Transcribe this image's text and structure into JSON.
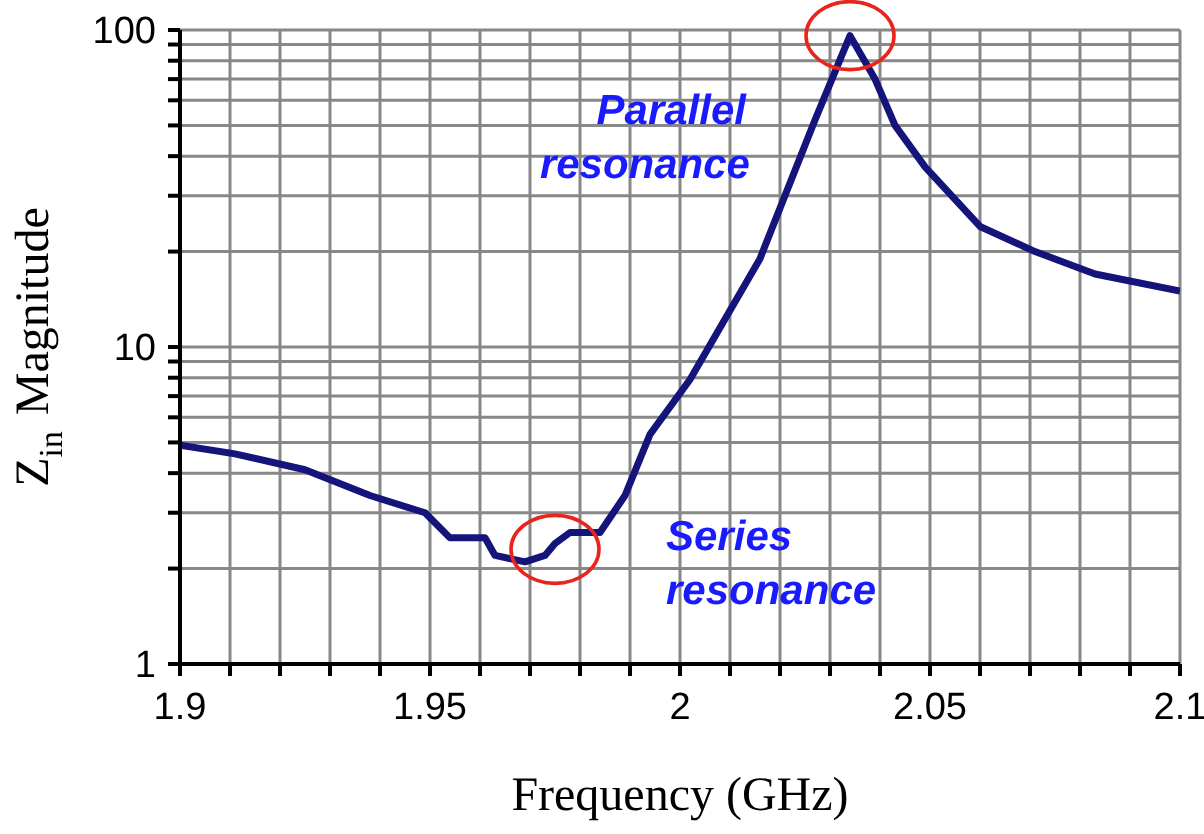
{
  "chart_data": {
    "type": "line",
    "xlabel": "Frequency (GHz)",
    "ylabel": "Z$_{in}$ Magnitude",
    "x": [
      1.9,
      1.911,
      1.925,
      1.938,
      1.949,
      1.954,
      1.961,
      1.963,
      1.969,
      1.973,
      1.975,
      1.978,
      1.984,
      1.989,
      1.994,
      2.002,
      2.016,
      2.027,
      2.034,
      2.039,
      2.043,
      2.049,
      2.06,
      2.071,
      2.083,
      2.1
    ],
    "series": [
      {
        "color": "#14147a",
        "values": [
          4.9,
          4.6,
          4.1,
          3.4,
          3.0,
          2.5,
          2.5,
          2.2,
          2.1,
          2.2,
          2.4,
          2.6,
          2.6,
          3.4,
          5.3,
          7.9,
          19,
          52,
          96,
          70,
          50,
          37,
          24,
          20,
          17,
          15
        ]
      }
    ],
    "xlim": [
      1.9,
      2.1
    ],
    "xticks": [
      1.9,
      {
        "value": 1.91,
        "label": null
      },
      {
        "value": 1.92,
        "label": null
      },
      {
        "value": 1.93,
        "label": null
      },
      {
        "value": 1.94,
        "label": null
      },
      1.95,
      {
        "value": 1.96,
        "label": null
      },
      {
        "value": 1.97,
        "label": null
      },
      {
        "value": 1.98,
        "label": null
      },
      {
        "value": 1.99,
        "label": null
      },
      2,
      {
        "value": 2.01,
        "label": null
      },
      {
        "value": 2.02,
        "label": null
      },
      {
        "value": 2.03,
        "label": null
      },
      {
        "value": 2.04,
        "label": null
      },
      2.05,
      {
        "value": 2.06,
        "label": null
      },
      {
        "value": 2.07,
        "label": null
      },
      {
        "value": 2.08,
        "label": null
      },
      {
        "value": 2.09,
        "label": null
      },
      2.1
    ],
    "ylim": [
      1,
      100
    ],
    "yticks": [
      1,
      {
        "value": 2,
        "label": null
      },
      {
        "value": 3,
        "label": null
      },
      {
        "value": 4,
        "label": null
      },
      {
        "value": 5,
        "label": null
      },
      {
        "value": 6,
        "label": null
      },
      {
        "value": 7,
        "label": null
      },
      {
        "value": 8,
        "label": null
      },
      {
        "value": 9,
        "label": null
      },
      10,
      {
        "value": 20,
        "label": null
      },
      {
        "value": 30,
        "label": null
      },
      {
        "value": 40,
        "label": null
      },
      {
        "value": 50,
        "label": null
      },
      {
        "value": 60,
        "label": null
      },
      {
        "value": 70,
        "label": null
      },
      {
        "value": 80,
        "label": null
      },
      {
        "value": 90,
        "label": null
      },
      100
    ],
    "log": "y",
    "grid": true,
    "legend": false,
    "marker": "none",
    "line_style": "solid",
    "annotations": [
      {
        "text": "Parallel resonance",
        "x": 2.034,
        "y": 96
      },
      {
        "text": "Series resonance",
        "x": 1.975,
        "y": 2.3
      }
    ]
  }
}
